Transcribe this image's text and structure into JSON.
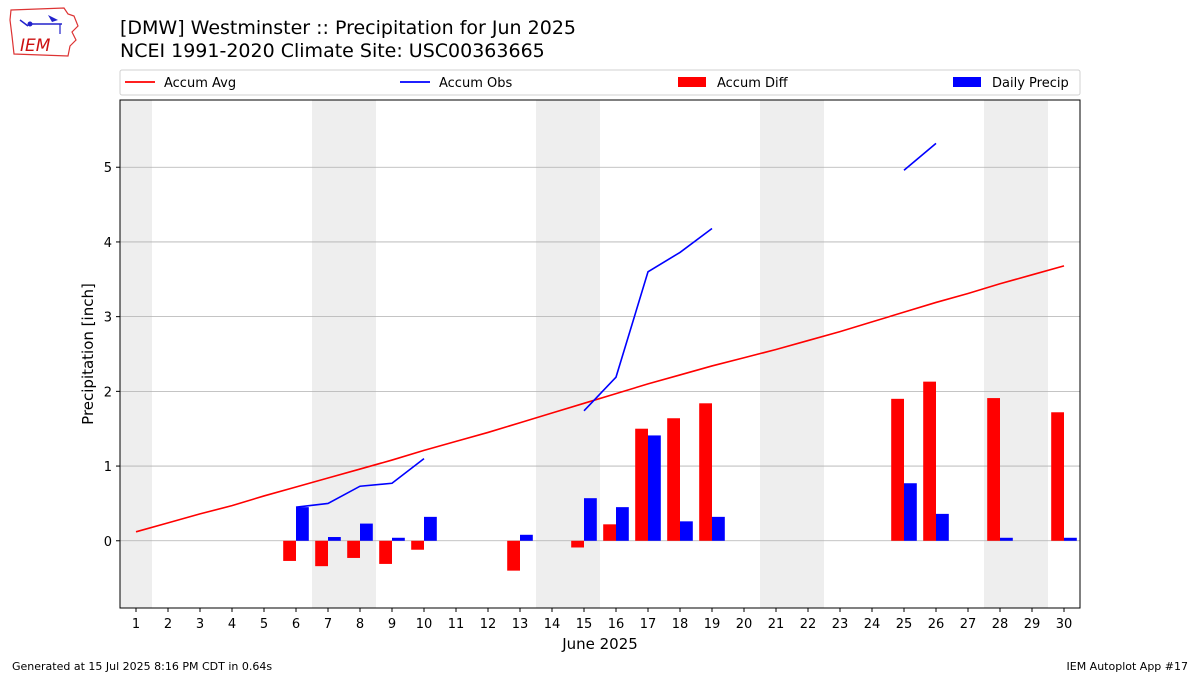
{
  "header": {
    "title": "[DMW] Westminster :: Precipitation for Jun 2025",
    "subtitle": "NCEI 1991-2020 Climate Site: USC00363665"
  },
  "logo": {
    "text": "IEM"
  },
  "footer": {
    "left": "Generated at 15 Jul 2025 8:16 PM CDT in 0.64s",
    "right": "IEM Autoplot App #17"
  },
  "chart_data": {
    "type": "bar",
    "xlabel": "June 2025",
    "ylabel": "Precipitation [inch]",
    "x": [
      1,
      2,
      3,
      4,
      5,
      6,
      7,
      8,
      9,
      10,
      11,
      12,
      13,
      14,
      15,
      16,
      17,
      18,
      19,
      20,
      21,
      22,
      23,
      24,
      25,
      26,
      27,
      28,
      29,
      30
    ],
    "xlim": [
      0.5,
      30.5
    ],
    "ylim": [
      -0.9,
      5.9
    ],
    "yticks": [
      0,
      1,
      2,
      3,
      4,
      5
    ],
    "grid": "horizontal",
    "legend_position": "top",
    "weekend_shading_days": [
      1,
      7,
      8,
      14,
      15,
      21,
      22,
      28,
      29
    ],
    "legend": [
      {
        "label": "Accum Avg",
        "kind": "line",
        "color": "#ff0000"
      },
      {
        "label": "Accum Obs",
        "kind": "line",
        "color": "#0000ff"
      },
      {
        "label": "Accum Diff",
        "kind": "bar",
        "color": "#ff0000"
      },
      {
        "label": "Daily Precip",
        "kind": "bar",
        "color": "#0000ff"
      }
    ],
    "series": [
      {
        "name": "Accum Avg",
        "kind": "line",
        "color": "#ff0000",
        "values": [
          0.12,
          0.24,
          0.36,
          0.47,
          0.6,
          0.72,
          0.84,
          0.96,
          1.08,
          1.21,
          1.33,
          1.45,
          1.58,
          1.71,
          1.84,
          1.97,
          2.1,
          2.22,
          2.34,
          2.45,
          2.56,
          2.68,
          2.8,
          2.93,
          3.06,
          3.19,
          3.31,
          3.44,
          3.56,
          3.68
        ]
      },
      {
        "name": "Accum Obs",
        "kind": "line",
        "color": "#0000ff",
        "values": [
          null,
          null,
          null,
          null,
          null,
          0.45,
          0.5,
          0.73,
          0.77,
          1.1,
          null,
          null,
          null,
          null,
          1.74,
          2.19,
          3.6,
          3.86,
          4.18,
          null,
          null,
          null,
          null,
          null,
          4.96,
          5.32,
          null,
          null,
          null,
          null
        ]
      },
      {
        "name": "Accum Diff",
        "kind": "bar",
        "color": "#ff0000",
        "values": [
          null,
          null,
          null,
          null,
          null,
          -0.27,
          -0.34,
          -0.23,
          -0.31,
          -0.12,
          null,
          null,
          -0.4,
          null,
          -0.09,
          0.22,
          1.5,
          1.64,
          1.84,
          null,
          null,
          null,
          null,
          null,
          1.9,
          2.13,
          null,
          1.91,
          null,
          1.72
        ]
      },
      {
        "name": "Daily Precip",
        "kind": "bar",
        "color": "#0000ff",
        "values": [
          null,
          null,
          null,
          null,
          null,
          0.45,
          0.05,
          0.23,
          0.04,
          0.32,
          null,
          null,
          0.08,
          null,
          0.57,
          0.45,
          1.41,
          0.26,
          0.32,
          null,
          null,
          null,
          null,
          null,
          0.77,
          0.36,
          null,
          0.04,
          null,
          0.04
        ]
      }
    ]
  }
}
